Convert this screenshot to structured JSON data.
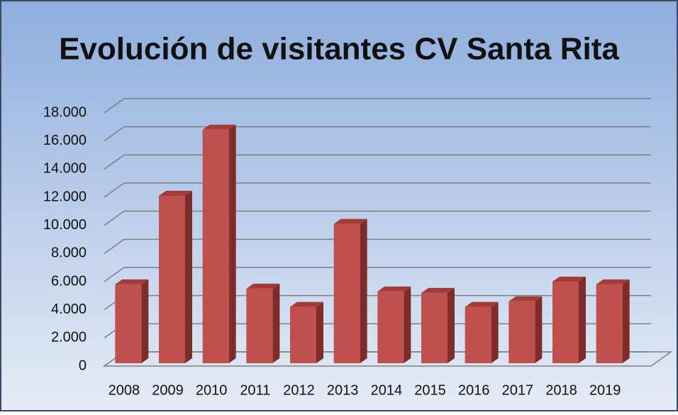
{
  "chart_data": {
    "type": "bar3d",
    "title": "Evolución de visitantes CV Santa Rita",
    "categories": [
      "2008",
      "2009",
      "2010",
      "2011",
      "2012",
      "2013",
      "2014",
      "2015",
      "2016",
      "2017",
      "2018",
      "2019"
    ],
    "values": [
      5600,
      11900,
      16600,
      5300,
      4000,
      9900,
      5100,
      5000,
      4000,
      4400,
      5800,
      5600
    ],
    "color": "#c0504d",
    "ylim": [
      0,
      18000
    ],
    "yticks": [
      0,
      {
        "value": 2000,
        "label": "2.000"
      },
      {
        "value": 4000,
        "label": "4.000"
      },
      {
        "value": 6000,
        "label": "6.000"
      },
      {
        "value": 8000,
        "label": "8.000"
      },
      {
        "value": 10000,
        "label": "10.000"
      },
      {
        "value": 12000,
        "label": "12.000"
      },
      {
        "value": 14000,
        "label": "14.000"
      },
      {
        "value": 16000,
        "label": "16.000"
      },
      {
        "value": 18000,
        "label": "18.000"
      }
    ],
    "grid": true
  }
}
